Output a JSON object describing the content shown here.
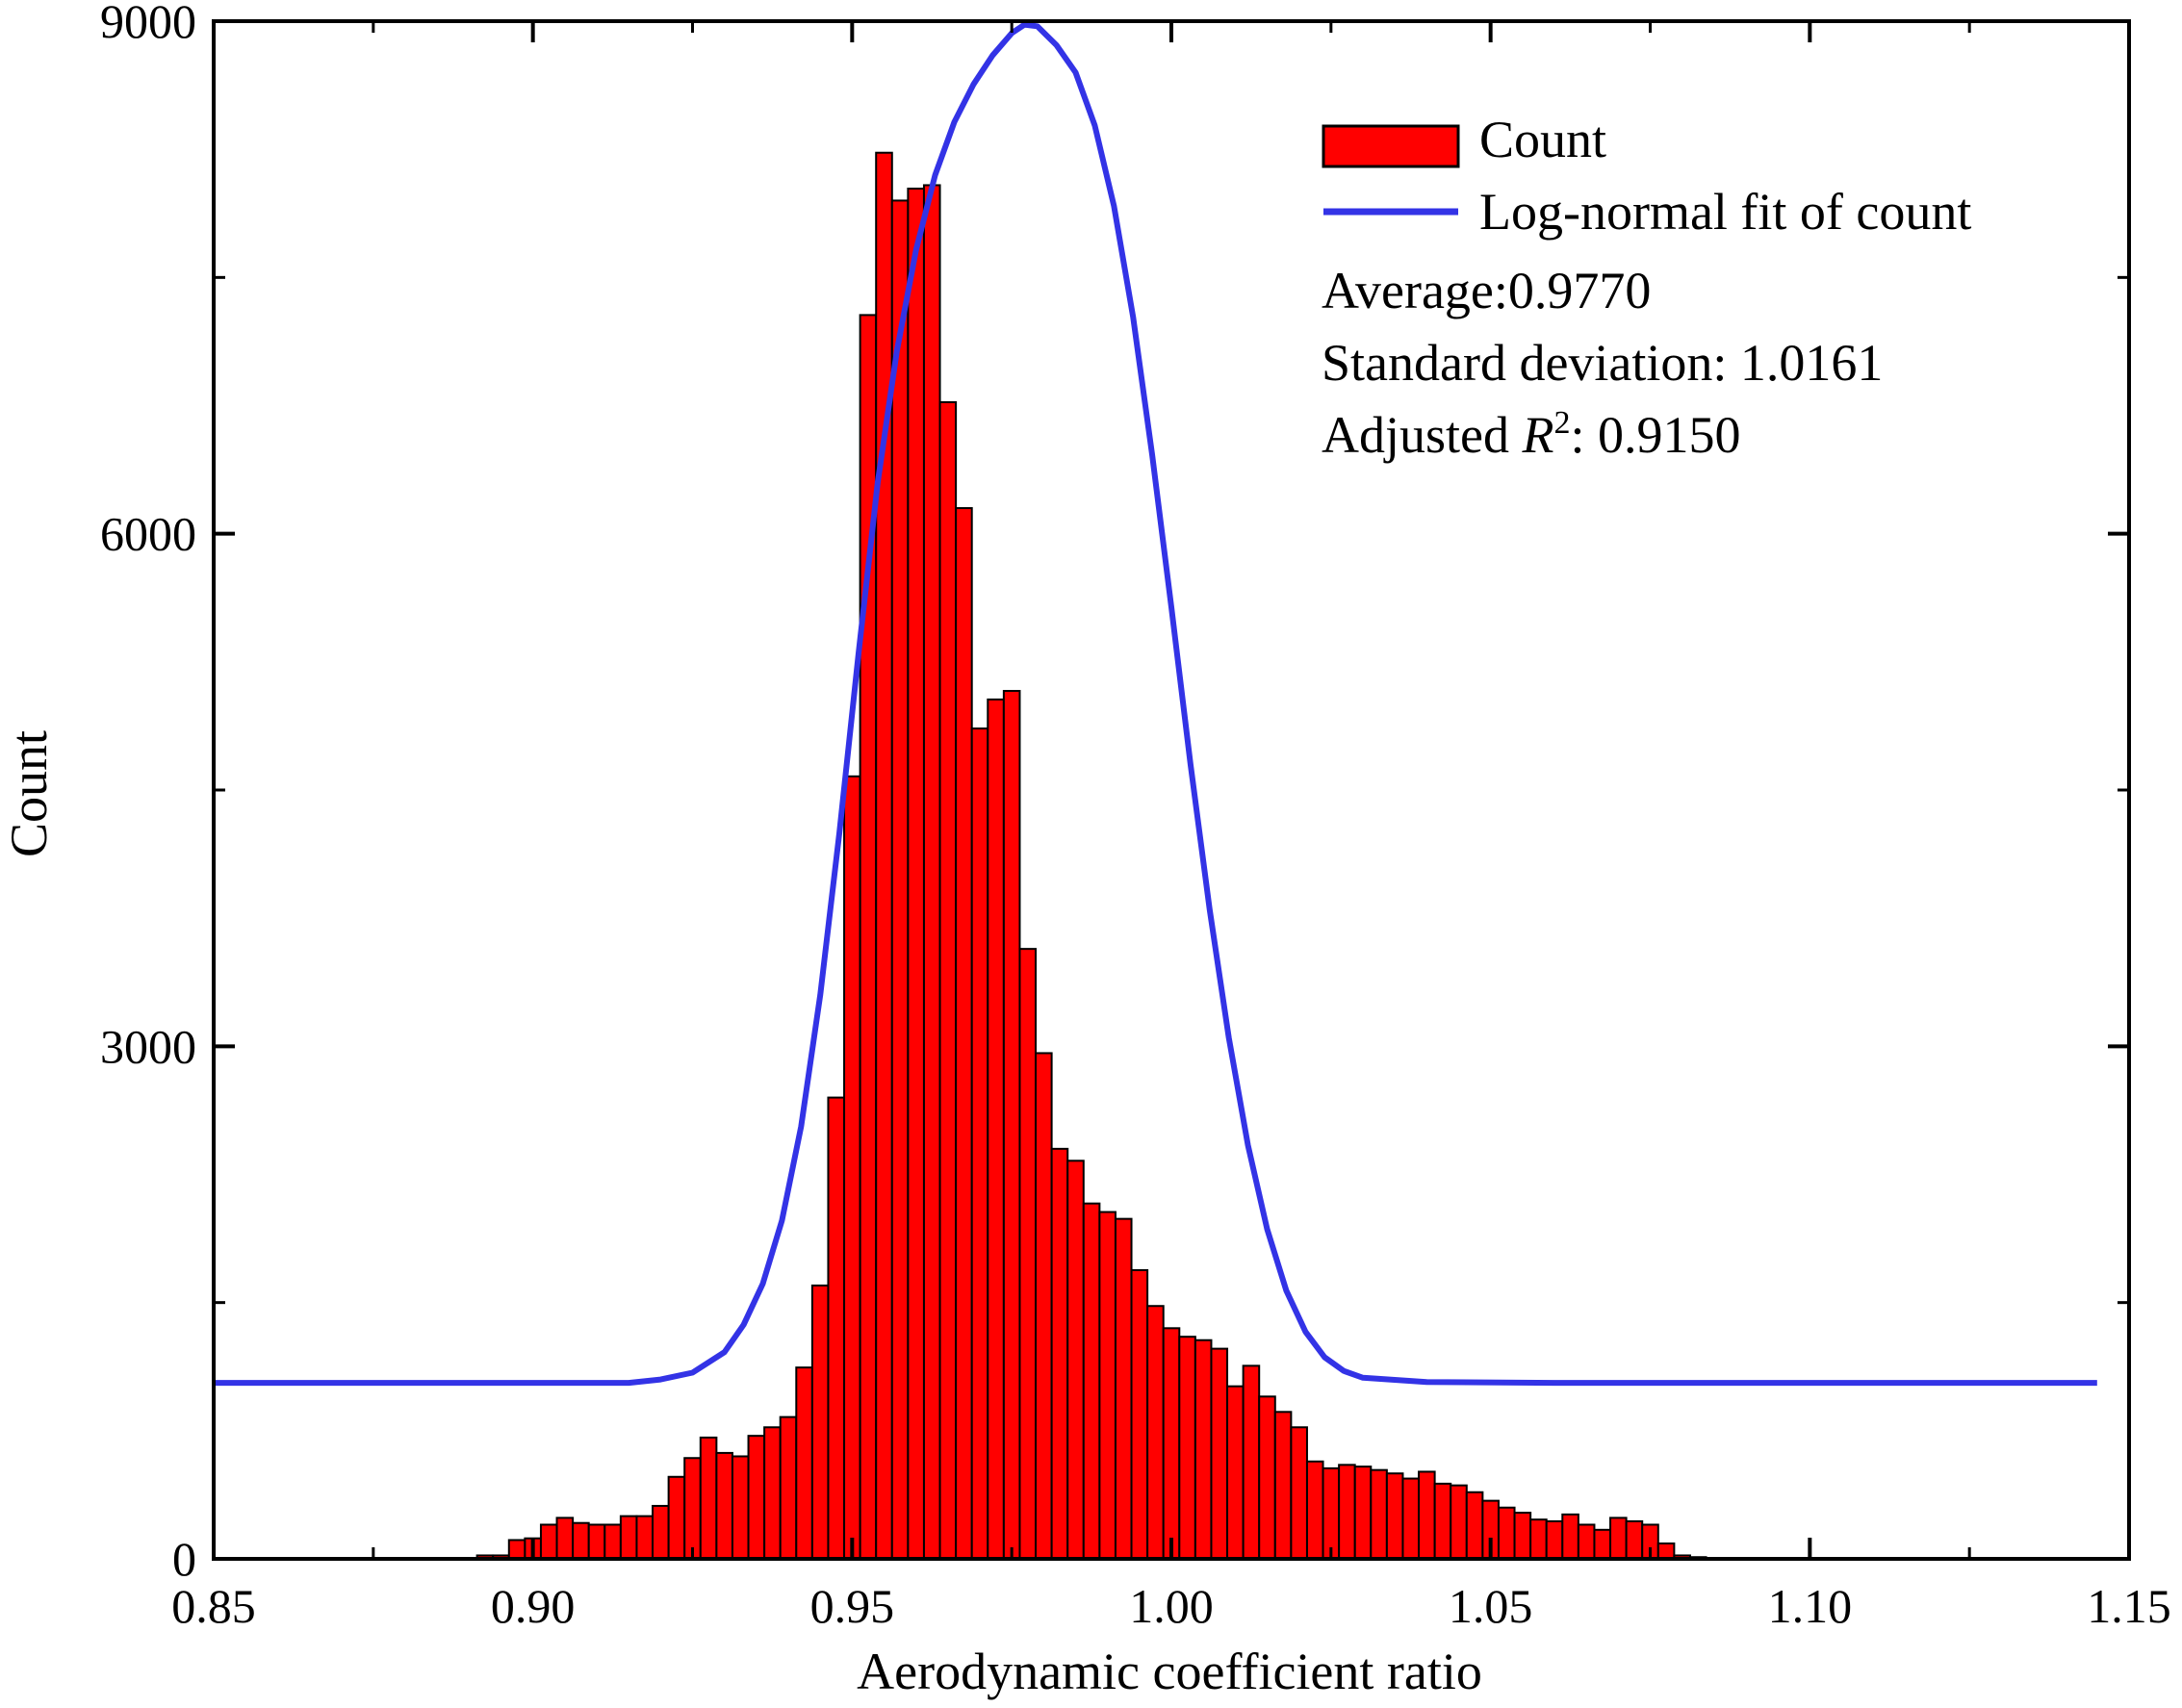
{
  "chart_data": {
    "type": "bar",
    "title": "",
    "xlabel": "Aerodynamic coefficient ratio",
    "ylabel": "Count",
    "xlim": [
      0.85,
      1.15
    ],
    "ylim": [
      0,
      9000
    ],
    "x_ticks": [
      "0.85",
      "0.90",
      "0.95",
      "1.00",
      "1.05",
      "1.10",
      "1.15"
    ],
    "y_ticks": [
      "0",
      "3000",
      "6000",
      "9000"
    ],
    "grid": false,
    "legend_position": "top-right",
    "colors": {
      "bars": "#ff0000",
      "bar_edge": "#000000",
      "fit": "#3333e6"
    },
    "bin_width": 0.0025,
    "series": [
      {
        "name": "Count",
        "kind": "histogram",
        "bin_centers": [
          0.8925,
          0.895,
          0.8975,
          0.9,
          0.9025,
          0.905,
          0.9075,
          0.91,
          0.9125,
          0.915,
          0.9175,
          0.92,
          0.9225,
          0.925,
          0.9275,
          0.93,
          0.9325,
          0.935,
          0.9375,
          0.94,
          0.9425,
          0.945,
          0.9475,
          0.95,
          0.9525,
          0.955,
          0.9575,
          0.96,
          0.9625,
          0.965,
          0.9675,
          0.97,
          0.9725,
          0.975,
          0.9775,
          0.98,
          0.9825,
          0.985,
          0.9875,
          0.99,
          0.9925,
          0.995,
          0.9975,
          1.0,
          1.0025,
          1.005,
          1.0075,
          1.01,
          1.0125,
          1.015,
          1.0175,
          1.02,
          1.0225,
          1.025,
          1.0275,
          1.03,
          1.0325,
          1.035,
          1.0375,
          1.04,
          1.0425,
          1.045,
          1.0475,
          1.05,
          1.0525,
          1.055,
          1.0575,
          1.06,
          1.0625,
          1.065,
          1.0675,
          1.07,
          1.0725,
          1.075,
          1.0775,
          1.08,
          1.0825,
          1.085,
          1.0875,
          1.09,
          1.0925,
          1.095,
          1.0975,
          1.1,
          1.1025,
          1.105,
          1.1075,
          1.11,
          1.1125,
          1.115,
          1.1175,
          1.12
        ],
        "values": [
          20,
          20,
          110,
          120,
          200,
          240,
          210,
          200,
          200,
          250,
          250,
          310,
          480,
          590,
          710,
          620,
          600,
          720,
          770,
          830,
          1120,
          1600,
          2700,
          4580,
          7280,
          8230,
          7950,
          8020,
          8040,
          6770,
          6150,
          4860,
          5030,
          5080,
          3570,
          2960,
          2400,
          2330,
          2080,
          2030,
          1990,
          1690,
          1480,
          1350,
          1300,
          1280,
          1230,
          1010,
          1130,
          950,
          860,
          770,
          570,
          530,
          550,
          540,
          520,
          500,
          470,
          510,
          440,
          430,
          390,
          340,
          300,
          270,
          230,
          220,
          260,
          200,
          170,
          240,
          220,
          200,
          90,
          20,
          10,
          0
        ]
      },
      {
        "name": "Log-normal fit of count",
        "kind": "line",
        "x": [
          0.85,
          0.87,
          0.89,
          0.91,
          0.915,
          0.92,
          0.925,
          0.93,
          0.933,
          0.936,
          0.939,
          0.942,
          0.945,
          0.948,
          0.951,
          0.954,
          0.957,
          0.96,
          0.963,
          0.966,
          0.969,
          0.972,
          0.975,
          0.977,
          0.979,
          0.982,
          0.985,
          0.988,
          0.991,
          0.994,
          0.997,
          1.0,
          1.003,
          1.006,
          1.009,
          1.012,
          1.015,
          1.018,
          1.021,
          1.024,
          1.027,
          1.03,
          1.04,
          1.06,
          1.1,
          1.145
        ],
        "values": [
          1030,
          1030,
          1030,
          1030,
          1030,
          1050,
          1090,
          1210,
          1370,
          1610,
          1980,
          2530,
          3300,
          4250,
          5300,
          6300,
          7070,
          7660,
          8100,
          8410,
          8630,
          8800,
          8930,
          8980,
          8970,
          8860,
          8700,
          8390,
          7920,
          7270,
          6460,
          5570,
          4650,
          3800,
          3050,
          2420,
          1930,
          1570,
          1330,
          1180,
          1100,
          1060,
          1035,
          1030,
          1030,
          1030
        ]
      }
    ],
    "annotations": {
      "average": "Average:0.9770",
      "std": "Standard deviation: 1.0161",
      "adjusted_r2_prefix": "Adjusted ",
      "adjusted_r2_symbol": "R",
      "adjusted_r2_power": "2",
      "adjusted_r2_value": ": 0.9150"
    }
  }
}
